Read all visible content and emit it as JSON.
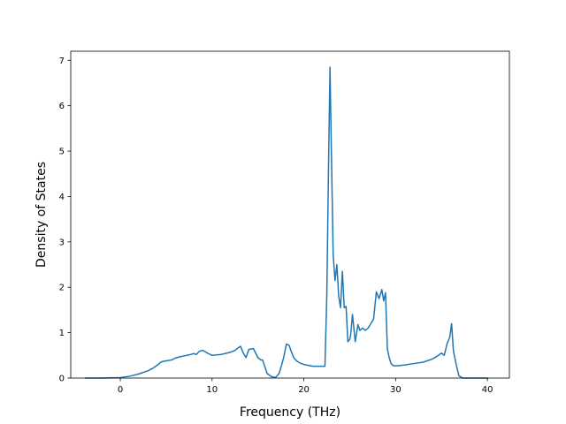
{
  "chart_data": {
    "type": "line",
    "title": "",
    "xlabel": "Frequency (THz)",
    "ylabel": "Density of States",
    "xlim": [
      -5.4,
      42.4
    ],
    "ylim": [
      0,
      7.2
    ],
    "x_ticks": [
      0,
      10,
      20,
      30,
      40
    ],
    "y_ticks": [
      0,
      1,
      2,
      3,
      4,
      5,
      6,
      7
    ],
    "x_tick_labels": [
      "0",
      "10",
      "20",
      "30",
      "40"
    ],
    "y_tick_labels": [
      "0",
      "1",
      "2",
      "3",
      "4",
      "5",
      "6",
      "7"
    ],
    "grid": false,
    "legend": "none",
    "series": [
      {
        "color": "#1f77b4",
        "x": [
          -3.8,
          -2,
          0,
          1,
          2,
          3,
          3.5,
          4,
          4.5,
          5,
          5.3,
          5.6,
          6,
          6.5,
          7,
          7.5,
          8,
          8.3,
          8.6,
          9,
          9.5,
          10,
          11,
          12,
          12.5,
          12.8,
          13.1,
          13.4,
          13.7,
          14,
          14.5,
          15,
          15.3,
          15.5,
          16,
          16.5,
          16.9,
          17.3,
          17.6,
          17.8,
          18.1,
          18.4,
          18.6,
          18.9,
          19.2,
          19.6,
          20,
          20.5,
          21,
          21.5,
          22,
          22.3,
          22.5,
          22.7,
          22.85,
          23.0,
          23.2,
          23.4,
          23.6,
          23.8,
          24.0,
          24.2,
          24.4,
          24.6,
          24.8,
          25.0,
          25.1,
          25.3,
          25.6,
          25.9,
          26.1,
          26.4,
          26.7,
          27.0,
          27.3,
          27.6,
          27.9,
          28.2,
          28.5,
          28.7,
          28.9,
          29.1,
          29.3,
          29.5,
          29.7,
          29.9,
          30.2,
          30.6,
          31,
          32,
          33,
          34,
          34.5,
          35,
          35.3,
          35.6,
          35.9,
          36.1,
          36.3,
          36.6,
          36.9,
          37.3,
          38,
          40
        ],
        "y": [
          0,
          0,
          0.01,
          0.04,
          0.09,
          0.16,
          0.21,
          0.28,
          0.36,
          0.38,
          0.39,
          0.4,
          0.44,
          0.47,
          0.49,
          0.51,
          0.54,
          0.52,
          0.59,
          0.61,
          0.55,
          0.5,
          0.52,
          0.57,
          0.61,
          0.66,
          0.7,
          0.55,
          0.45,
          0.63,
          0.65,
          0.45,
          0.4,
          0.4,
          0.1,
          0.03,
          0.01,
          0.1,
          0.3,
          0.45,
          0.75,
          0.72,
          0.6,
          0.45,
          0.38,
          0.33,
          0.3,
          0.28,
          0.26,
          0.26,
          0.26,
          0.26,
          1.8,
          4.8,
          6.85,
          5.0,
          2.7,
          2.15,
          2.5,
          1.8,
          1.55,
          2.35,
          1.55,
          1.58,
          0.8,
          0.85,
          0.95,
          1.4,
          0.8,
          1.18,
          1.05,
          1.1,
          1.05,
          1.1,
          1.2,
          1.3,
          1.9,
          1.75,
          1.95,
          1.7,
          1.88,
          0.65,
          0.45,
          0.32,
          0.28,
          0.27,
          0.27,
          0.28,
          0.29,
          0.32,
          0.35,
          0.42,
          0.48,
          0.55,
          0.5,
          0.75,
          0.9,
          1.2,
          0.6,
          0.3,
          0.05,
          0,
          0,
          0
        ]
      }
    ]
  }
}
